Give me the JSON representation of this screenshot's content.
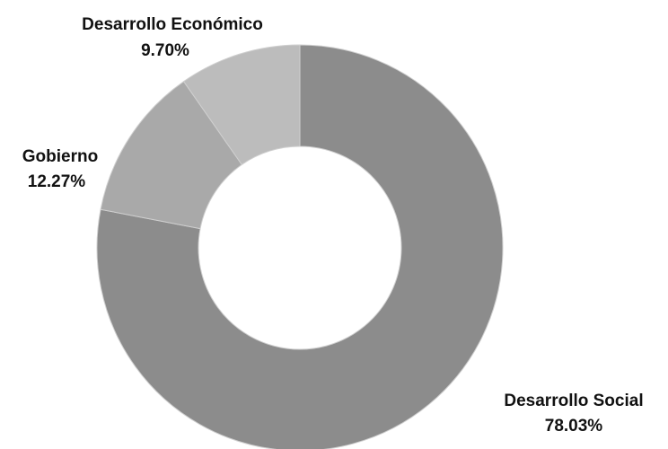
{
  "chart_data": {
    "type": "pie",
    "donut": true,
    "legend": "none",
    "slices": [
      {
        "label": "Desarrollo Social",
        "value": 78.03,
        "value_label": "78.03%",
        "color": "#8c8c8c"
      },
      {
        "label": "Gobierno",
        "value": 12.27,
        "value_label": "12.27%",
        "color": "#a9a9a9"
      },
      {
        "label": "Desarrollo Económico",
        "value": 9.7,
        "value_label": "9.70%",
        "color": "#bcbcbc"
      }
    ]
  }
}
